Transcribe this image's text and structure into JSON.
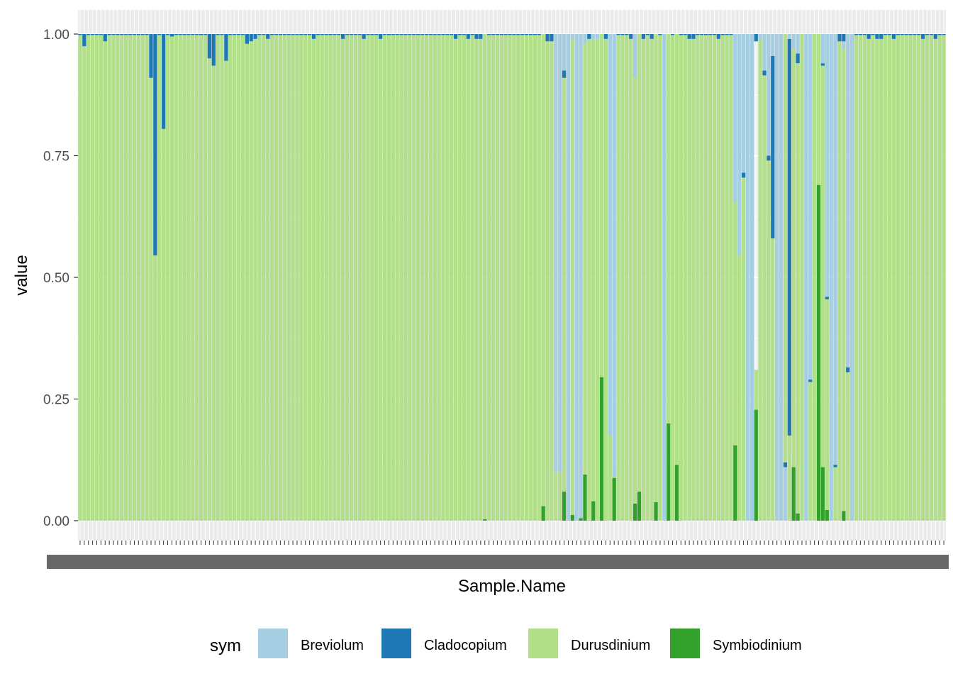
{
  "chart_data": {
    "type": "bar",
    "stacked": true,
    "xlabel": "Sample.Name",
    "ylabel": "value",
    "ylim": [
      0,
      1
    ],
    "yticks": [
      "0.00",
      "0.25",
      "0.50",
      "0.75",
      "1.00"
    ],
    "legend": {
      "title": "sym",
      "placement": "bottom"
    },
    "series": [
      {
        "name": "Breviolum",
        "color": "#a6cee3"
      },
      {
        "name": "Cladocopium",
        "color": "#1f78b4"
      },
      {
        "name": "Durusdinium",
        "color": "#b2df8a"
      },
      {
        "name": "Symbiodinium",
        "color": "#33a02c"
      }
    ],
    "sample_count": 208,
    "sample_labels_note": "x tick labels overplotted and illegible",
    "samples_clado_top": [
      [
        1,
        0.975
      ],
      [
        6,
        0.985
      ],
      [
        17,
        0.91
      ],
      [
        18,
        0.545
      ],
      [
        22,
        0.995
      ],
      [
        31,
        0.95
      ],
      [
        32,
        0.935
      ],
      [
        35,
        0.945
      ],
      [
        40,
        0.98
      ],
      [
        41,
        0.985
      ],
      [
        42,
        0.99
      ],
      [
        45,
        0.99
      ],
      [
        56,
        0.99
      ],
      [
        63,
        0.99
      ],
      [
        68,
        0.99
      ],
      [
        72,
        0.99
      ],
      [
        90,
        0.99
      ],
      [
        93,
        0.99
      ],
      [
        95,
        0.99
      ],
      [
        96,
        0.99
      ],
      [
        113,
        0.99
      ],
      [
        119,
        0.99
      ],
      [
        121,
        0.99
      ],
      [
        126,
        0.99
      ],
      [
        127,
        0.99
      ],
      [
        128,
        0.99
      ],
      [
        132,
        0.99
      ],
      [
        134,
        0.99
      ],
      [
        135,
        0.99
      ],
      [
        137,
        0.99
      ],
      [
        138,
        0.99
      ],
      [
        141,
        0.99
      ],
      [
        143,
        0.99
      ],
      [
        146,
        0.99
      ],
      [
        147,
        0.99
      ],
      [
        153,
        0.99
      ],
      [
        158,
        0.99
      ],
      [
        162,
        0.99
      ],
      [
        166,
        0.99
      ],
      [
        170,
        0.99
      ],
      [
        173,
        0.99
      ],
      [
        175,
        0.99
      ],
      [
        178,
        0.99
      ],
      [
        183,
        0.99
      ],
      [
        185,
        0.99
      ],
      [
        189,
        0.99
      ],
      [
        191,
        0.99
      ],
      [
        192,
        0.99
      ],
      [
        195,
        0.99
      ],
      [
        202,
        0.99
      ],
      [
        205,
        0.99
      ]
    ],
    "samples_mixed": [
      {
        "i": 20,
        "brev": [
          0.808,
          1.0
        ],
        "dur_top": 0.805
      },
      {
        "i": 97,
        "sym": 0.003,
        "dur_top": 1.0
      },
      {
        "i": 97.5,
        "sym": 0.0,
        "dur_top": 1.0
      },
      {
        "i": 111,
        "sym": 0.03,
        "dur_top": 1.0
      },
      {
        "i": 112,
        "sym": 0.0,
        "dur_top": 0.985,
        "clado": 0.99
      },
      {
        "i": 113,
        "sym": 0.0,
        "dur_top": 0.985,
        "clado": 0.99
      },
      {
        "i": 114,
        "sym": 0.0,
        "brev_bottom": 0.1,
        "brev_top": 1.0,
        "clado": 0.0
      },
      {
        "i": 115,
        "sym": 0.0,
        "brev_bottom": 0.1,
        "brev_top": 1.0
      },
      {
        "i": 116,
        "sym": 0.06,
        "dur_top": 0.92,
        "clado_band": [
          0.91,
          0.925
        ],
        "brev_top": 1.0
      },
      {
        "i": 117,
        "sym": 0.0,
        "dur_top": 0.0,
        "brev_top": 1.0
      },
      {
        "i": 118,
        "sym": 0.012,
        "dur_top": 0.99,
        "brev_top": 1.0
      },
      {
        "i": 119,
        "sym": 0.002,
        "dur_top": 0.0,
        "brev_top": 1.0
      },
      {
        "i": 120,
        "sym": 0.006,
        "dur_top": 0.005,
        "brev_top": 1.0
      },
      {
        "i": 121,
        "sym": 0.095,
        "dur_top": 0.98,
        "brev_top": 1.0
      },
      {
        "i": 122,
        "sym": 0.0,
        "dur_top": 0.99,
        "clado_band": [
          0.99,
          1.0
        ]
      },
      {
        "i": 123,
        "sym": 0.04,
        "dur_top": 0.99,
        "brev_top": 1.0
      },
      {
        "i": 124,
        "sym": 0.0,
        "dur_top": 0.99,
        "brev_top": 1.0
      },
      {
        "i": 125,
        "sym": 0.295,
        "dur_top": 1.0
      },
      {
        "i": 126,
        "sym": 0.0,
        "dur_top": 0.99,
        "clado_band": [
          0.99,
          1.0
        ]
      },
      {
        "i": 127,
        "sym": 0.0,
        "dur_top": 0.175,
        "brev_top": 1.0
      },
      {
        "i": 128,
        "sym": 0.088,
        "dur_top": 0.09,
        "brev_top": 1.0
      },
      {
        "i": 133,
        "sym": 0.035,
        "dur_top": 0.91,
        "brev_band": [
          0.91,
          1.0
        ]
      },
      {
        "i": 134,
        "sym": 0.06,
        "dur_top": 1.0
      },
      {
        "i": 138,
        "sym": 0.038,
        "dur_top": 1.0
      },
      {
        "i": 140,
        "sym": 0.0,
        "dur_top": 0.0,
        "brev_top": 1.0
      },
      {
        "i": 141,
        "sym": 0.2,
        "dur_top": 1.0
      },
      {
        "i": 143,
        "sym": 0.115,
        "dur_top": 1.0
      },
      {
        "i": 157,
        "sym": 0.155,
        "dur_top": 0.655,
        "brev_top": 1.0
      },
      {
        "i": 158,
        "sym": 0.0,
        "dur_top": 0.545,
        "brev_top": 1.0
      },
      {
        "i": 159,
        "sym": 0.0,
        "dur_top": 0.705,
        "clado_band": [
          0.705,
          0.715
        ],
        "brev_top": 1.0
      },
      {
        "i": 160,
        "sym": 0.0,
        "dur_top": 0.0,
        "brev_top": 1.0
      },
      {
        "i": 161,
        "sym": 0.0,
        "dur_top": 0.0,
        "brev_top": 1.0
      },
      {
        "i": 162,
        "sym": 0.228,
        "dur_top": 0.31,
        "brev_top": 0.985,
        "clado_band": [
          0.985,
          1.0
        ]
      },
      {
        "i": 163,
        "sym": 0.0,
        "dur_top": 0.99,
        "brev_top": 1.0
      },
      {
        "i": 164,
        "sym": 0.0,
        "dur_top": 0.915,
        "clado_band": [
          0.915,
          0.925
        ],
        "brev_top": 1.0
      },
      {
        "i": 165,
        "sym": 0.0,
        "dur_top": 0.74,
        "clado_band": [
          0.74,
          0.75
        ],
        "brev_top": 1.0
      },
      {
        "i": 166,
        "sym": 0.0,
        "dur_top": 0.58,
        "clado_band": [
          0.58,
          0.955
        ],
        "brev_top": 1.0
      },
      {
        "i": 167,
        "sym": 0.0,
        "dur_top": 0.0,
        "brev_top": 1.0
      },
      {
        "i": 168,
        "sym": 0.0,
        "dur_top": 0.0,
        "brev_top": 0.58,
        "brev_extra": [
          0.58,
          1.0
        ]
      },
      {
        "i": 169,
        "sym": 0.0,
        "brev_top": 0.11,
        "clado_band": [
          0.11,
          0.12
        ],
        "dur_band": [
          0.12,
          1.0
        ]
      },
      {
        "i": 170,
        "sym": 0.0,
        "dur_top": 0.175,
        "clado_band": [
          0.175,
          0.99
        ],
        "brev_top": 1.0
      },
      {
        "i": 171,
        "sym": 0.11,
        "dur_top": 0.97,
        "brev_top": 1.0
      },
      {
        "i": 172,
        "sym": 0.015,
        "dur_top": 0.94,
        "clado_band": [
          0.94,
          0.96
        ],
        "brev_top": 1.0
      },
      {
        "i": 173,
        "sym": 0.0,
        "dur_top": 1.0
      },
      {
        "i": 174,
        "sym": 0.0,
        "dur_top": 0.0,
        "brev_top": 1.0
      },
      {
        "i": 175,
        "sym": 0.0,
        "dur_top": 0.285,
        "clado_band": [
          0.285,
          0.29
        ],
        "brev_top": 1.0
      },
      {
        "i": 176,
        "sym": 0.0,
        "dur_top": 1.0
      },
      {
        "i": 177,
        "sym": 0.69,
        "dur_top": 1.0
      },
      {
        "i": 178,
        "sym": 0.11,
        "dur_top": 0.935,
        "clado_band": [
          0.935,
          0.94
        ],
        "brev_top": 1.0
      },
      {
        "i": 179,
        "sym": 0.022,
        "dur_top": 0.455,
        "clado_band": [
          0.455,
          0.46
        ],
        "brev_top": 1.0
      },
      {
        "i": 180,
        "sym": 0.0,
        "dur_top": 0.0,
        "brev_top": 1.0
      },
      {
        "i": 181,
        "sym": 0.0,
        "dur_top": 0.11,
        "clado_band": [
          0.11,
          0.115
        ],
        "brev_top": 1.0
      },
      {
        "i": 182,
        "sym": 0.0,
        "dur_top": 0.985,
        "clado_band": [
          0.985,
          1.0
        ]
      },
      {
        "i": 183,
        "sym": 0.02,
        "dur_top": 0.97,
        "brev_top": 0.985
      },
      {
        "i": 184,
        "sym": 0.0,
        "dur_top": 0.305,
        "clado_band": [
          0.305,
          0.315
        ],
        "brev_top": 1.0
      },
      {
        "i": 185,
        "sym": 0.0,
        "dur_top": 0.0,
        "brev_top": 1.0
      }
    ]
  }
}
